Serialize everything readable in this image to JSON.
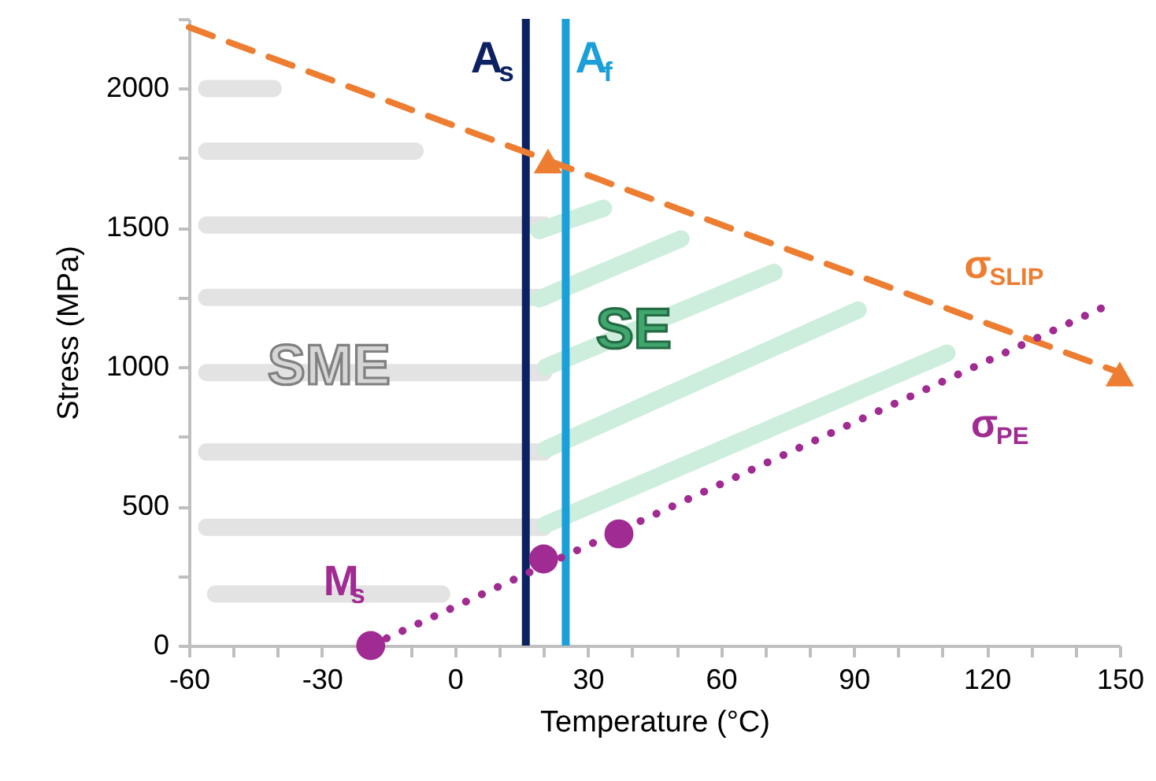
{
  "chart_data": {
    "type": "line",
    "xlabel": "Temperature (°C)",
    "ylabel": "Stress (MPa)",
    "xlim": [
      -60,
      150
    ],
    "xticks": [
      -60,
      {
        "value": -50,
        "label": null
      },
      {
        "value": -40,
        "label": null
      },
      -30,
      {
        "value": -20,
        "label": null
      },
      {
        "value": -10,
        "label": null
      },
      0,
      {
        "value": 10,
        "label": null
      },
      {
        "value": 20,
        "label": null
      },
      30,
      {
        "value": 40,
        "label": null
      },
      {
        "value": 50,
        "label": null
      },
      60,
      {
        "value": 70,
        "label": null
      },
      {
        "value": 80,
        "label": null
      },
      90,
      {
        "value": 100,
        "label": null
      },
      {
        "value": 110,
        "label": null
      },
      120,
      {
        "value": 130,
        "label": null
      },
      {
        "value": 140,
        "label": null
      },
      150
    ],
    "ylim": [
      0,
      2250
    ],
    "yticks": [
      0,
      {
        "value": 250,
        "label": null
      },
      500,
      {
        "value": 750,
        "label": null
      },
      1000,
      {
        "value": 1250,
        "label": null
      },
      1500,
      {
        "value": 1750,
        "label": null
      },
      2000,
      {
        "value": 2250,
        "label": null
      }
    ],
    "grid": false,
    "annotations": [
      {
        "text": "SME",
        "x": -30,
        "y": 1000
      },
      {
        "text": "SE",
        "x": 40,
        "y": 1130
      }
    ],
    "ref_lines": [
      {
        "axis": "x",
        "value": 16,
        "label": "A$_{s}$",
        "color": "#0c2161"
      },
      {
        "axis": "x",
        "value": 25,
        "label": "A$_{f}$",
        "color": "#1a9fd9"
      }
    ],
    "series": [
      {
        "color": "#e3e3e3",
        "x": [
          -56,
          -41
        ],
        "values": [
          2000,
          2000
        ]
      },
      {
        "color": "#e3e3e3",
        "x": [
          -56,
          -9
        ],
        "values": [
          1775,
          1775
        ]
      },
      {
        "color": "#e3e3e3",
        "x": [
          -56,
          20
        ],
        "values": [
          1510,
          1510
        ]
      },
      {
        "color": "#e3e3e3",
        "x": [
          -56,
          20
        ],
        "values": [
          1250,
          1250
        ]
      },
      {
        "color": "#e3e3e3",
        "x": [
          -56,
          20
        ],
        "values": [
          980,
          980
        ]
      },
      {
        "color": "#e3e3e3",
        "x": [
          -56,
          20
        ],
        "values": [
          695,
          695
        ]
      },
      {
        "color": "#e3e3e3",
        "x": [
          -56,
          20
        ],
        "values": [
          425,
          425
        ]
      },
      {
        "color": "#e3e3e3",
        "x": [
          -54,
          -3
        ],
        "values": [
          185,
          185
        ]
      },
      {
        "color": "#cdeedc",
        "x": [
          19,
          33.5
        ],
        "values": [
          1490,
          1570
        ]
      },
      {
        "color": "#cdeedc",
        "x": [
          19,
          51
        ],
        "values": [
          1245,
          1460
        ]
      },
      {
        "color": "#cdeedc",
        "x": [
          20.5,
          72
        ],
        "values": [
          1000,
          1340
        ]
      },
      {
        "color": "#cdeedc",
        "x": [
          20.5,
          91
        ],
        "values": [
          705,
          1205
        ]
      },
      {
        "color": "#cdeedc",
        "x": [
          20.5,
          111
        ],
        "values": [
          435,
          1050
        ]
      },
      {
        "name": "σ$_{SLIP}$",
        "color": "#ed7d31",
        "line_style": "dashed",
        "x": [
          -60,
          150
        ],
        "values": [
          2220,
          980
        ]
      },
      {
        "name": "σ$_{PE}$",
        "color": "#a02b93",
        "line_style": "dotted",
        "x": [
          -19,
          148
        ],
        "values": [
          0,
          1227
        ]
      },
      {
        "type": "scatter",
        "color": "#ed7d31",
        "marker": "triangle",
        "x": [
          21,
          150
        ],
        "values": [
          1740,
          975
        ]
      },
      {
        "name": "M$_{s}$",
        "type": "scatter",
        "color": "#a02b93",
        "marker": "circle",
        "x": [
          -19,
          20,
          37
        ],
        "values": [
          0,
          311,
          401
        ]
      }
    ]
  }
}
